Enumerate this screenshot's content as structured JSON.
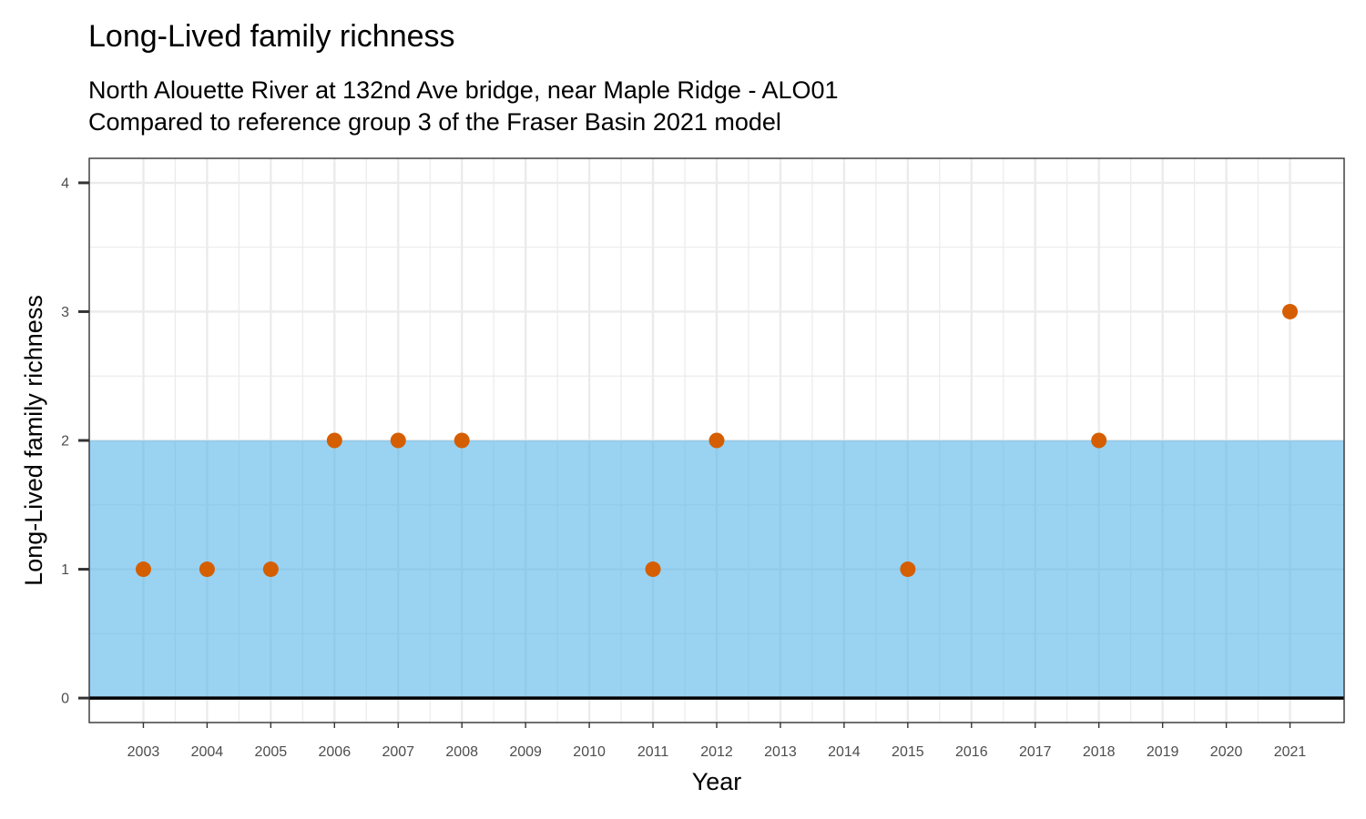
{
  "chart_data": {
    "type": "scatter",
    "title": "Long-Lived family richness",
    "subtitle_lines": [
      "North Alouette River at 132nd Ave bridge, near Maple Ridge - ALO01",
      "Compared to reference group 3 of the Fraser Basin 2021 model"
    ],
    "xlabel": "Year",
    "ylabel": "Long-Lived family richness",
    "x_ticks": [
      "2003",
      "2004",
      "2005",
      "2006",
      "2007",
      "2008",
      "2009",
      "2010",
      "2011",
      "2012",
      "2013",
      "2014",
      "2015",
      "2016",
      "2017",
      "2018",
      "2019",
      "2020",
      "2021"
    ],
    "y_ticks": [
      "0",
      "1",
      "2",
      "3",
      "4"
    ],
    "xlim": [
      2002.15,
      2021.85
    ],
    "ylim": [
      -0.19,
      4.19
    ],
    "reference_band": {
      "ymin": 0,
      "ymax": 2,
      "color": "#56b4e9"
    },
    "point_color": "#d55e00",
    "grid": true,
    "points": [
      {
        "x": 2003,
        "y": 1
      },
      {
        "x": 2004,
        "y": 1
      },
      {
        "x": 2005,
        "y": 1
      },
      {
        "x": 2006,
        "y": 2
      },
      {
        "x": 2007,
        "y": 2
      },
      {
        "x": 2008,
        "y": 2
      },
      {
        "x": 2011,
        "y": 1
      },
      {
        "x": 2012,
        "y": 2
      },
      {
        "x": 2015,
        "y": 1
      },
      {
        "x": 2018,
        "y": 2
      },
      {
        "x": 2021,
        "y": 3
      }
    ]
  }
}
